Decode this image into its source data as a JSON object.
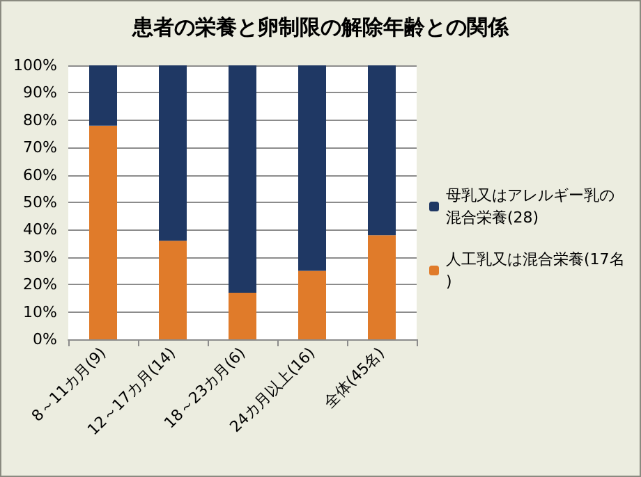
{
  "chart_data": {
    "type": "bar",
    "title": "患者の栄養と卵制限の解除年齢との関係",
    "stacked": true,
    "categories": [
      "8～11カ月(9)",
      "12～17カ月(14)",
      "18～23カ月(6)",
      "24カ月以上(16)",
      "全体(45名)"
    ],
    "series": [
      {
        "name": "人工乳又は混合栄養(17名)",
        "color": "#e07b2a",
        "values": [
          78,
          36,
          17,
          25,
          38
        ]
      },
      {
        "name": "母乳又はアレルギー乳の混合栄養(28)",
        "color": "#1f3864",
        "values": [
          22,
          64,
          83,
          75,
          62
        ]
      }
    ],
    "ylim": [
      0,
      100
    ],
    "yticks": [
      {
        "value": 0,
        "label": "0%"
      },
      {
        "value": 10,
        "label": "10%"
      },
      {
        "value": 20,
        "label": "20%"
      },
      {
        "value": 30,
        "label": "30%"
      },
      {
        "value": 40,
        "label": "40%"
      },
      {
        "value": 50,
        "label": "50%"
      },
      {
        "value": 60,
        "label": "60%"
      },
      {
        "value": 70,
        "label": "70%"
      },
      {
        "value": 80,
        "label": "80%"
      },
      {
        "value": 90,
        "label": "90%"
      },
      {
        "value": 100,
        "label": "100%"
      }
    ],
    "grid": "y",
    "legend": "right"
  }
}
